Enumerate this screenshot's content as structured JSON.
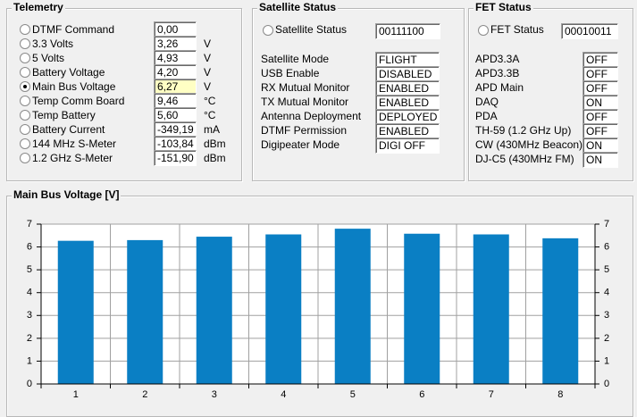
{
  "telemetry": {
    "title": "Telemetry",
    "rows": [
      {
        "label": "DTMF Command",
        "value": "0,00"
      },
      {
        "label": "3.3 Volts",
        "value": "3,26",
        "unit": "V"
      },
      {
        "label": "5 Volts",
        "value": "4,93",
        "unit": "V"
      },
      {
        "label": "Battery Voltage",
        "value": "4,20",
        "unit": "V"
      },
      {
        "label": "Main Bus Voltage",
        "value": "6,27",
        "unit": "V",
        "selected": true
      },
      {
        "label": "Temp Comm Board",
        "value": "9,46",
        "unit": "°C"
      },
      {
        "label": "Temp Battery",
        "value": "5,60",
        "unit": "°C"
      },
      {
        "label": "Battery Current",
        "value": "-349,19",
        "unit": "mA"
      },
      {
        "label": "144 MHz S-Meter",
        "value": "-103,84",
        "unit": "dBm"
      },
      {
        "label": "1.2 GHz S-Meter",
        "value": "-151,90",
        "unit": "dBm"
      }
    ]
  },
  "satellite_status": {
    "title": "Satellite Status",
    "option": "Satellite Status",
    "code": "00111100",
    "rows": [
      {
        "label": "Satellite Mode",
        "value": "FLIGHT"
      },
      {
        "label": "USB Enable",
        "value": "DISABLED"
      },
      {
        "label": "RX Mutual Monitor",
        "value": "ENABLED"
      },
      {
        "label": "TX Mutual Monitor",
        "value": "ENABLED"
      },
      {
        "label": "Antenna Deployment",
        "value": "DEPLOYED"
      },
      {
        "label": "DTMF Permission",
        "value": "ENABLED"
      },
      {
        "label": "Digipeater Mode",
        "value": "DIGI OFF"
      }
    ]
  },
  "fet_status": {
    "title": "FET Status",
    "option": "FET Status",
    "code": "00010011",
    "rows": [
      {
        "label": "APD3.3A",
        "value": "OFF"
      },
      {
        "label": "APD3.3B",
        "value": "OFF"
      },
      {
        "label": "APD Main",
        "value": "OFF"
      },
      {
        "label": "DAQ",
        "value": "ON"
      },
      {
        "label": "PDA",
        "value": "OFF"
      },
      {
        "label": "TH-59 (1.2 GHz Up)",
        "value": "OFF"
      },
      {
        "label": "CW (430MHz Beacon)",
        "value": "ON"
      },
      {
        "label": "DJ-C5 (430MHz FM)",
        "value": "ON"
      }
    ]
  },
  "chart_data": {
    "type": "bar",
    "title": "Main Bus Voltage [V]",
    "categories": [
      "1",
      "2",
      "3",
      "4",
      "5",
      "6",
      "7",
      "8"
    ],
    "values": [
      6.27,
      6.3,
      6.45,
      6.55,
      6.8,
      6.58,
      6.55,
      6.38
    ],
    "color": "#0a7fc4",
    "ylim": [
      0,
      7
    ],
    "yticks": [
      0,
      1,
      2,
      3,
      4,
      5,
      6,
      7
    ],
    "y2lim": [
      0,
      7
    ],
    "y2ticks": [
      0,
      1,
      2,
      3,
      4,
      5,
      6,
      7
    ],
    "grid": true
  }
}
